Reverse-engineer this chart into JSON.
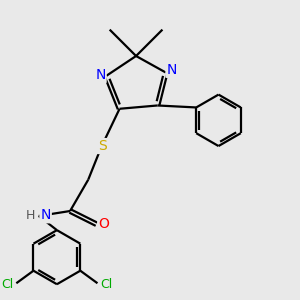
{
  "background_color": "#e9e9e9",
  "bond_color": "#000000",
  "bond_width": 1.6,
  "atom_colors": {
    "N": "#0000ff",
    "O": "#ff0000",
    "S": "#ccaa00",
    "Cl": "#00aa00",
    "C": "#000000",
    "H": "#555555"
  },
  "font_size": 8.5,
  "fig_size": [
    3.0,
    3.0
  ],
  "dpi": 100
}
